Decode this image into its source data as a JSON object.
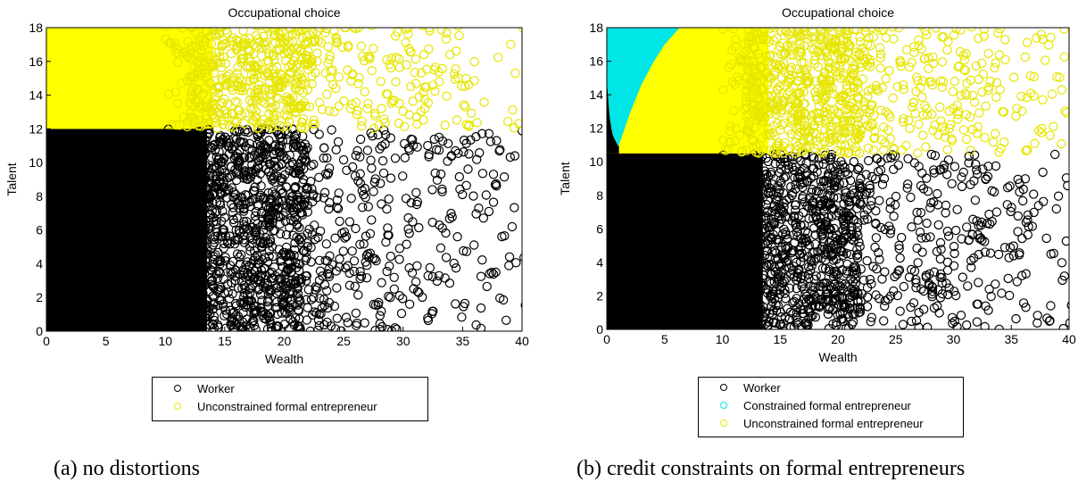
{
  "chart_data": [
    {
      "type": "scatter",
      "title": "Occupational choice",
      "xlabel": "Wealth",
      "ylabel": "Talent",
      "xlim": [
        0,
        40
      ],
      "ylim": [
        0,
        18
      ],
      "xticks": [
        "0",
        "5",
        "10",
        "15",
        "20",
        "25",
        "30",
        "35",
        "40"
      ],
      "yticks": [
        "0",
        "2",
        "4",
        "6",
        "8",
        "10",
        "12",
        "14",
        "16",
        "18"
      ],
      "grid": false,
      "legend_position": "below",
      "series": [
        {
          "name": "Worker",
          "color": "#000000",
          "region": {
            "talent_min": 0,
            "talent_max": 12.0
          }
        },
        {
          "name": "Unconstrained formal entrepreneur",
          "color": "#ffff00",
          "region": {
            "talent_min": 12.0,
            "talent_max": 18
          }
        }
      ],
      "caption": "(a) no distortions"
    },
    {
      "type": "scatter",
      "title": "Occupational choice",
      "xlabel": "Wealth",
      "ylabel": "Talent",
      "xlim": [
        0,
        40
      ],
      "ylim": [
        0,
        18
      ],
      "xticks": [
        "0",
        "5",
        "10",
        "15",
        "20",
        "25",
        "30",
        "35",
        "40"
      ],
      "yticks": [
        "0",
        "2",
        "4",
        "6",
        "8",
        "10",
        "12",
        "14",
        "16",
        "18"
      ],
      "grid": false,
      "legend_position": "below",
      "series": [
        {
          "name": "Worker",
          "color": "#000000",
          "region": {
            "talent_min": 0,
            "talent_max": 10.5
          }
        },
        {
          "name": "Constrained formal entrepreneur",
          "color": "#00e5e5",
          "boundary": {
            "wealth": [
              0,
              0.25,
              0.5,
              1.0,
              2.0,
              3.0,
              4.0,
              5.0,
              6.3
            ],
            "talent": [
              14.8,
              12.6,
              11.6,
              10.9,
              12.9,
              14.6,
              15.9,
              17.0,
              18.0
            ]
          }
        },
        {
          "name": "Unconstrained formal entrepreneur",
          "color": "#ffff00",
          "region": {
            "talent_min": 10.5,
            "talent_max": 18
          }
        }
      ],
      "caption": "(b) credit constraints on formal entrepreneurs"
    }
  ]
}
